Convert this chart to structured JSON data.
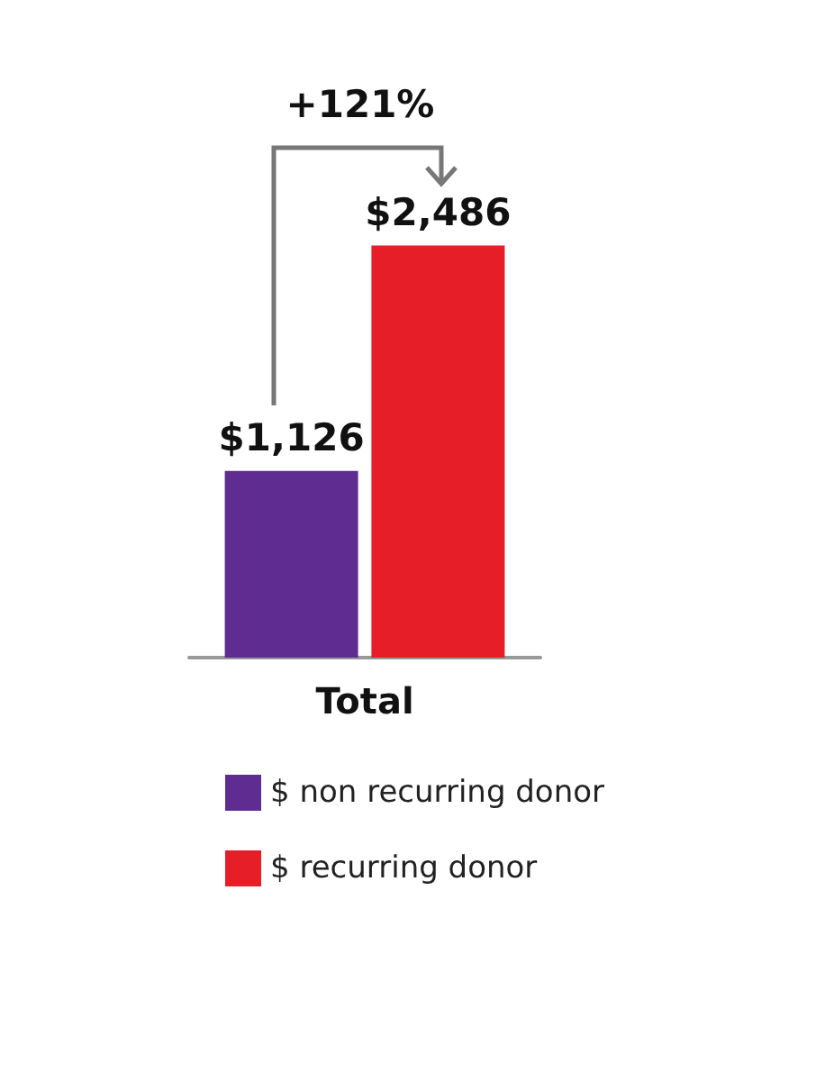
{
  "chart_data": {
    "type": "bar",
    "categories": [
      "Total"
    ],
    "series": [
      {
        "name": "$ non recurring donor",
        "color": "#5f2d91",
        "values": [
          1126
        ],
        "value_labels": [
          "$1,126"
        ]
      },
      {
        "name": "$ recurring donor",
        "color": "#e61e28",
        "values": [
          2486
        ],
        "value_labels": [
          "$2,486"
        ]
      }
    ],
    "annotations": [
      "+121%"
    ],
    "legend": "bottom"
  }
}
